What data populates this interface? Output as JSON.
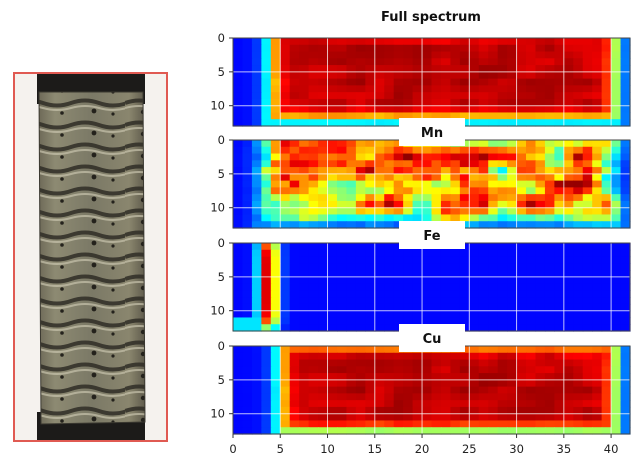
{
  "chart_data": {
    "type": "heatmap",
    "title": "Full spectrum",
    "x_ticks": [
      "0",
      "5",
      "10",
      "15",
      "20",
      "25",
      "30",
      "35",
      "40"
    ],
    "y_ticks": [
      "0",
      "5",
      "10"
    ],
    "xlim": [
      0,
      42
    ],
    "ylim": [
      0,
      13
    ],
    "colormap": "jet",
    "grid": true,
    "panels": [
      {
        "name": "Full spectrum",
        "label": "",
        "pattern": "rect",
        "region": {
          "x0": 4,
          "x1": 40.5,
          "y0": 0,
          "y1": 12
        },
        "level": 0.9
      },
      {
        "name": "Mn",
        "label": "Mn",
        "pattern": "patchy",
        "region": {
          "x0": 3,
          "x1": 40.5,
          "y0": 0,
          "y1": 12
        },
        "level": 0.55
      },
      {
        "name": "Fe",
        "label": "Fe",
        "pattern": "strip",
        "region": {
          "x0": 2.5,
          "x1": 5,
          "y0": 0,
          "y1": 12
        },
        "level": 0.95
      },
      {
        "name": "Cu",
        "label": "Cu",
        "pattern": "rect",
        "region": {
          "x0": 5,
          "x1": 40.5,
          "y0": 1,
          "y1": 12.5
        },
        "level": 0.9
      }
    ]
  },
  "photo": {
    "frame_color": "#e05a52"
  }
}
